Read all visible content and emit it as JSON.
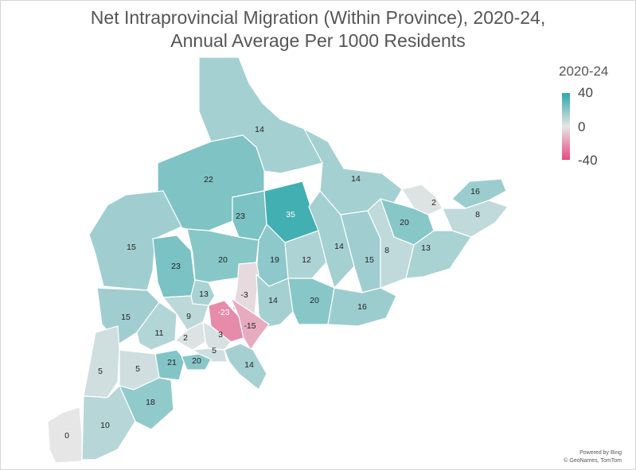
{
  "title_line1": "Net Intraprovincial Migration (Within Province), 2020-24,",
  "title_line2": "Annual Average Per 1000 Residents",
  "legend": {
    "title": "2020-24",
    "max_label": "40",
    "mid_label": "0",
    "min_label": "-40",
    "color_max": "#2aa7aa",
    "color_mid": "#e6e6e6",
    "color_min": "#e8487f"
  },
  "attribution": {
    "line1": "Powered by Bing",
    "line2": "© GeoNames, TomTom"
  },
  "regions": [
    {
      "label": "14",
      "value": 14
    },
    {
      "label": "22",
      "value": 22
    },
    {
      "label": "14",
      "value": 14
    },
    {
      "label": "2",
      "value": 2
    },
    {
      "label": "16",
      "value": 16
    },
    {
      "label": "8",
      "value": 8
    },
    {
      "label": "23",
      "value": 23
    },
    {
      "label": "35",
      "value": 35
    },
    {
      "label": "20",
      "value": 20
    },
    {
      "label": "15",
      "value": 15
    },
    {
      "label": "23",
      "value": 23
    },
    {
      "label": "20",
      "value": 20
    },
    {
      "label": "19",
      "value": 19
    },
    {
      "label": "12",
      "value": 12
    },
    {
      "label": "14",
      "value": 14
    },
    {
      "label": "15",
      "value": 15
    },
    {
      "label": "8",
      "value": 8
    },
    {
      "label": "13",
      "value": 13
    },
    {
      "label": "13",
      "value": 13
    },
    {
      "label": "-3",
      "value": -3
    },
    {
      "label": "-23",
      "value": -23
    },
    {
      "label": "14",
      "value": 14
    },
    {
      "label": "20",
      "value": 20
    },
    {
      "label": "16",
      "value": 16
    },
    {
      "label": "15",
      "value": 15
    },
    {
      "label": "9",
      "value": 9
    },
    {
      "label": "11",
      "value": 11
    },
    {
      "label": "2",
      "value": 2
    },
    {
      "label": "3",
      "value": 3
    },
    {
      "label": "-15",
      "value": -15
    },
    {
      "label": "5",
      "value": 5
    },
    {
      "label": "21",
      "value": 21
    },
    {
      "label": "20",
      "value": 20
    },
    {
      "label": "14",
      "value": 14
    },
    {
      "label": "5",
      "value": 5
    },
    {
      "label": "5",
      "value": 5
    },
    {
      "label": "18",
      "value": 18
    },
    {
      "label": "10",
      "value": 10
    },
    {
      "label": "0",
      "value": 0
    }
  ]
}
